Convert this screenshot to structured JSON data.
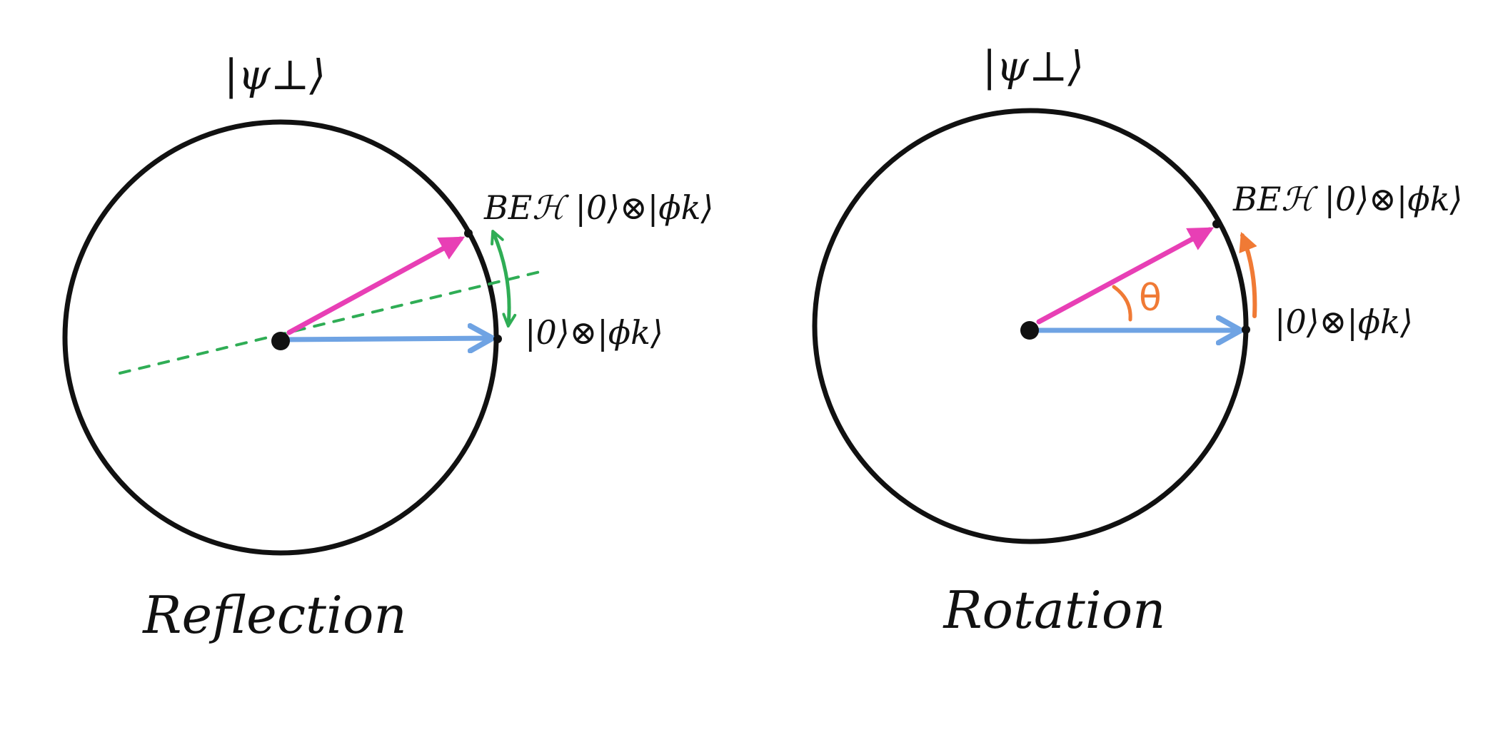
{
  "panels": [
    {
      "id": "reflection",
      "caption": "Reflection",
      "top_label": "|ψ⊥⟩",
      "upper_vector_label": "BEℋ |0⟩⊗|ϕk⟩",
      "lower_vector_label": "|0⟩⊗|ϕk⟩"
    },
    {
      "id": "rotation",
      "caption": "Rotation",
      "top_label": "|ψ⊥⟩",
      "upper_vector_label": "BEℋ |0⟩⊗|ϕk⟩",
      "lower_vector_label": "|0⟩⊗|ϕk⟩",
      "angle_label": "θ"
    }
  ],
  "colors": {
    "circle": "#111111",
    "upper_vector": "#e83fb5",
    "lower_vector": "#6fa3e3",
    "reflection_axis": "#2fad55",
    "reflection_arrow": "#2fad55",
    "rotation_arrow": "#f07a35",
    "angle_mark": "#f07a35"
  }
}
